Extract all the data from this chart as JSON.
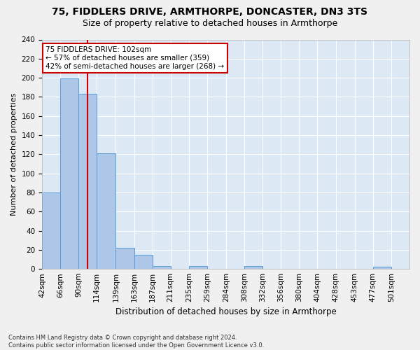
{
  "title1": "75, FIDDLERS DRIVE, ARMTHORPE, DONCASTER, DN3 3TS",
  "title2": "Size of property relative to detached houses in Armthorpe",
  "xlabel": "Distribution of detached houses by size in Armthorpe",
  "ylabel": "Number of detached properties",
  "footnote": "Contains HM Land Registry data © Crown copyright and database right 2024.\nContains public sector information licensed under the Open Government Licence v3.0.",
  "bin_edges": [
    42,
    66,
    90,
    114,
    139,
    163,
    187,
    211,
    235,
    259,
    284,
    308,
    332,
    356,
    380,
    404,
    428,
    453,
    477,
    501,
    525
  ],
  "bar_heights": [
    80,
    199,
    183,
    121,
    22,
    15,
    3,
    0,
    3,
    0,
    0,
    3,
    0,
    0,
    0,
    0,
    0,
    0,
    2,
    0
  ],
  "bar_color": "#aec6e8",
  "bar_edgecolor": "#5b9bd5",
  "property_size": 102,
  "vline_color": "#cc0000",
  "annotation_line1": "75 FIDDLERS DRIVE: 102sqm",
  "annotation_line2": "← 57% of detached houses are smaller (359)",
  "annotation_line3": "42% of semi-detached houses are larger (268) →",
  "annotation_box_color": "#ffffff",
  "annotation_box_edgecolor": "#cc0000",
  "ylim": [
    0,
    240
  ],
  "yticks": [
    0,
    20,
    40,
    60,
    80,
    100,
    120,
    140,
    160,
    180,
    200,
    220,
    240
  ],
  "xlim": [
    42,
    525
  ],
  "bg_color": "#dce9f5",
  "grid_color": "#ffffff",
  "fig_bg_color": "#f0f0f0",
  "title1_fontsize": 10,
  "title2_fontsize": 9,
  "xlabel_fontsize": 8.5,
  "ylabel_fontsize": 8,
  "tick_fontsize": 7.5,
  "annotation_fontsize": 7.5
}
